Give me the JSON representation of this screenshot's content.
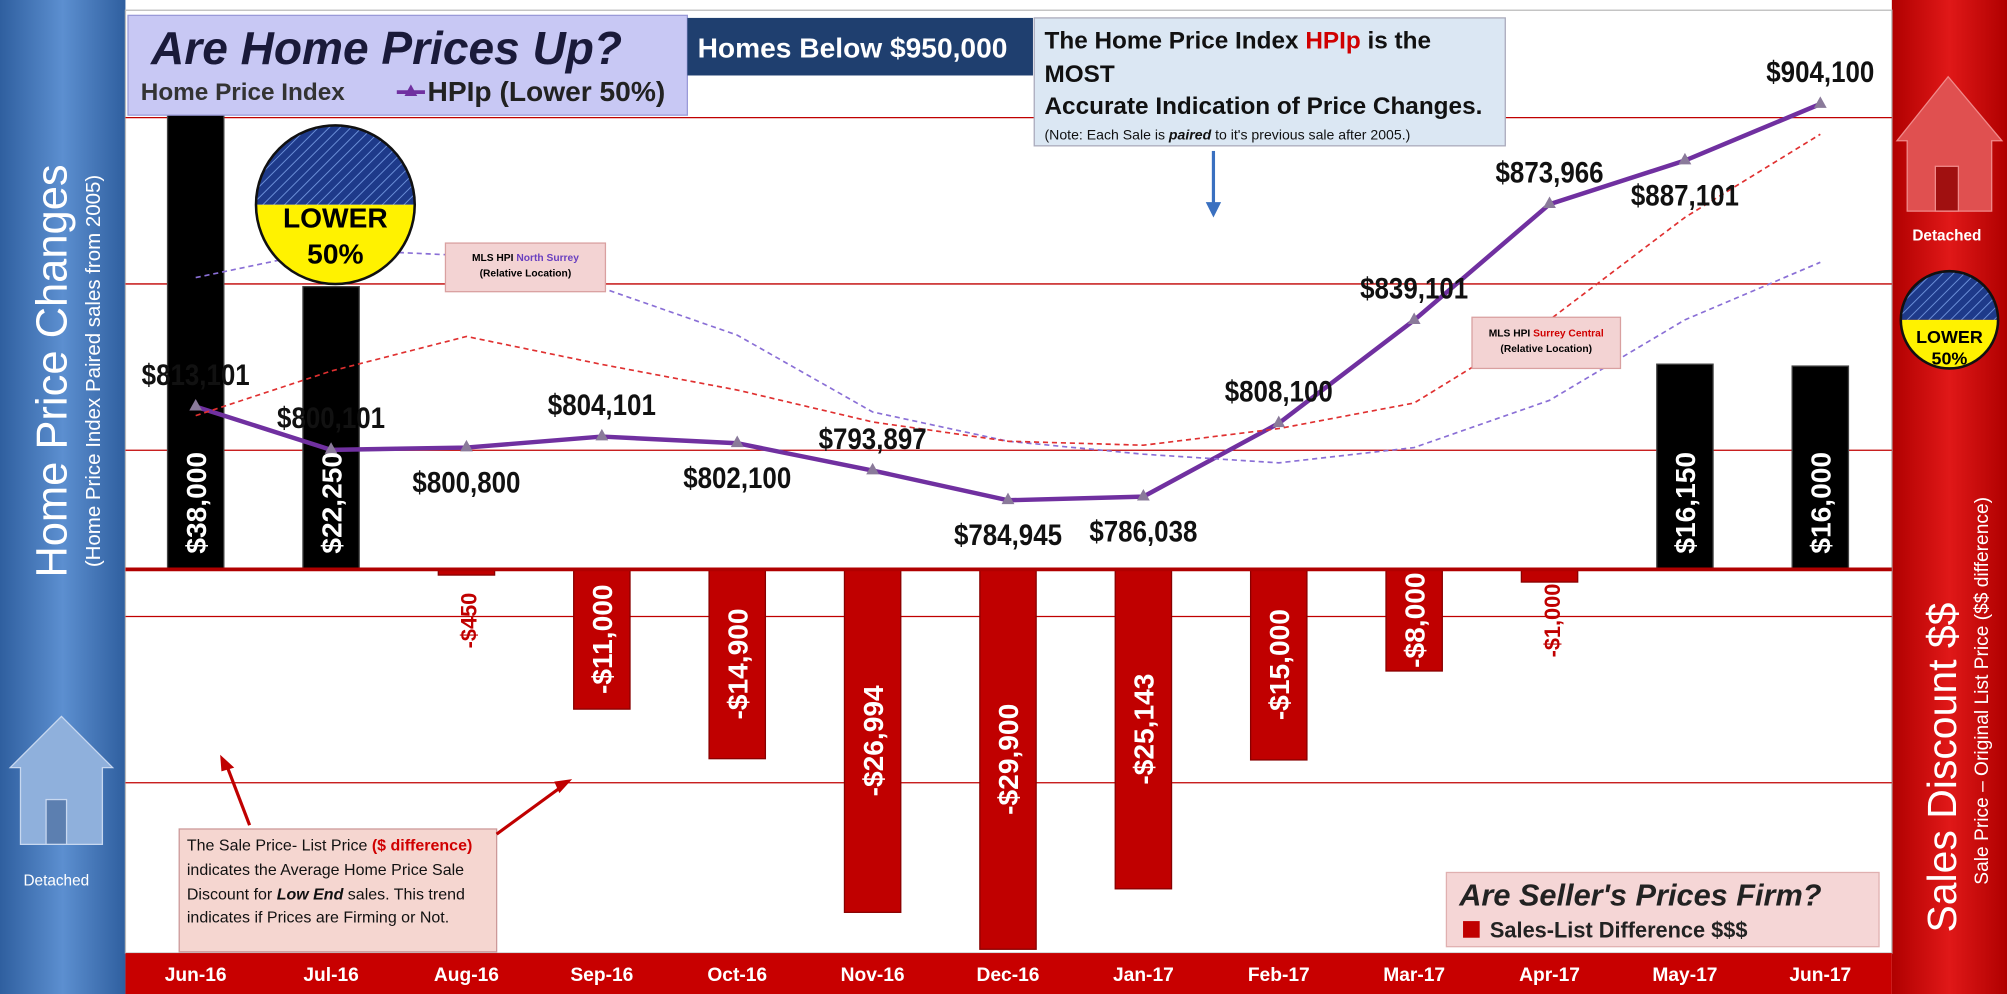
{
  "chart_data": {
    "type": "combo",
    "title": "Are Home Prices Up?",
    "subtitle": "Home Price Index",
    "filter_label": "Homes Below $950,000",
    "left_axis_title": "Home Price Changes",
    "left_axis_subtitle": "(Home Price Index Paired sales from 2005)",
    "right_axis_title": "Sales Discount $$",
    "right_axis_subtitle": "Sale Price – Original List Price ($$ difference)",
    "badge": [
      "LOWER",
      "50%"
    ],
    "house_label": "Detached",
    "hpi_callout": {
      "line1": [
        "The Home Price Index ",
        "HPIp",
        " is the MOST"
      ],
      "line2": "Accurate Indication of Price Changes.",
      "note": [
        "(Note: Each Sale is ",
        "paired",
        " to it's previous sale after 2005.)"
      ]
    },
    "discount_callout": [
      "The Sale Price- List Price ",
      "($ difference)",
      " indicates the Average Home Price Sale Discount for ",
      "Low End",
      " sales. This trend indicates if Prices are Firming or Not."
    ],
    "mls_prefix": "MLS HPI",
    "mls_note": "(Relative Location)",
    "discount_legend_title": "Are Seller's Prices Firm?",
    "categories": [
      "Jun-16",
      "Jul-16",
      "Aug-16",
      "Sep-16",
      "Oct-16",
      "Nov-16",
      "Dec-16",
      "Jan-17",
      "Feb-17",
      "Mar-17",
      "Apr-17",
      "May-17",
      "Jun-17"
    ],
    "series": [
      {
        "name": "Sales-List Difference $$$",
        "kind": "bar",
        "axis": "y2",
        "color": "#c00000",
        "positive_color": "#000000",
        "values": [
          38000,
          22250,
          -450,
          -11000,
          -14900,
          -26994,
          -29900,
          -25143,
          -15000,
          -8000,
          -1000,
          16150,
          16000
        ],
        "value_labels": [
          "$38,000",
          "$22,250",
          "-$450",
          "-$11,000",
          "-$14,900",
          "-$26,994",
          "-$29,900",
          "-$25,143",
          "-$15,000",
          "-$8,000",
          "-$1,000",
          "$16,150",
          "$16,000"
        ]
      },
      {
        "name": "HPIp (Lower 50%)",
        "kind": "line",
        "color": "#7030a0",
        "values": [
          813101,
          800101,
          800800,
          804101,
          802100,
          793897,
          784945,
          786038,
          808100,
          839101,
          873966,
          887101,
          904100
        ],
        "value_labels": [
          "$813,101",
          "$800,101",
          "$800,800",
          "$804,101",
          "$802,100",
          "$793,897",
          "$784,945",
          "$786,038",
          "$808,100",
          "$839,101",
          "$873,966",
          "$887,101",
          "$904,100"
        ]
      },
      {
        "name": "North Surrey",
        "kind": "dashed",
        "color": "#8a6fd6",
        "values": [
          851900,
          860400,
          858500,
          848800,
          834600,
          811500,
          802700,
          798800,
          796200,
          800800,
          815000,
          839200,
          856500
        ]
      },
      {
        "name": "Surrey Central",
        "kind": "dashed",
        "color": "#e03030",
        "values": [
          810400,
          823800,
          834200,
          825800,
          818100,
          808500,
          802700,
          801500,
          806500,
          814200,
          839200,
          870000,
          895000
        ]
      }
    ],
    "ylim": [
      648800,
      929600
    ],
    "yticks": [
      700000,
      750000,
      800000,
      850000,
      900000
    ],
    "y2lim": [
      -30200,
      43300
    ],
    "grid": true
  }
}
